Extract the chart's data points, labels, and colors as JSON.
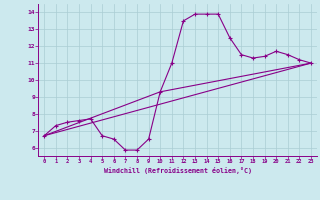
{
  "background_color": "#cce9ee",
  "grid_color": "#aacdd4",
  "line_color": "#880088",
  "xlim": [
    -0.5,
    23.5
  ],
  "ylim": [
    5.5,
    14.5
  ],
  "yticks": [
    6,
    7,
    8,
    9,
    10,
    11,
    12,
    13,
    14
  ],
  "xticks": [
    0,
    1,
    2,
    3,
    4,
    5,
    6,
    7,
    8,
    9,
    10,
    11,
    12,
    13,
    14,
    15,
    16,
    17,
    18,
    19,
    20,
    21,
    22,
    23
  ],
  "xlabel": "Windchill (Refroidissement éolien,°C)",
  "curve1_x": [
    0,
    1,
    2,
    3,
    4,
    5,
    6,
    7,
    8,
    9,
    10,
    11,
    12,
    13,
    14,
    15,
    16,
    17,
    18,
    19,
    20,
    21,
    22,
    23
  ],
  "curve1_y": [
    6.7,
    7.3,
    7.5,
    7.6,
    7.7,
    6.7,
    6.5,
    5.85,
    5.85,
    6.5,
    9.3,
    11.0,
    13.5,
    13.9,
    13.9,
    13.9,
    12.5,
    11.5,
    11.3,
    11.4,
    11.7,
    11.5,
    11.2,
    11.0
  ],
  "curve2_x": [
    0,
    23
  ],
  "curve2_y": [
    6.7,
    11.0
  ],
  "curve3_x": [
    0,
    10,
    23
  ],
  "curve3_y": [
    6.7,
    9.3,
    11.0
  ]
}
